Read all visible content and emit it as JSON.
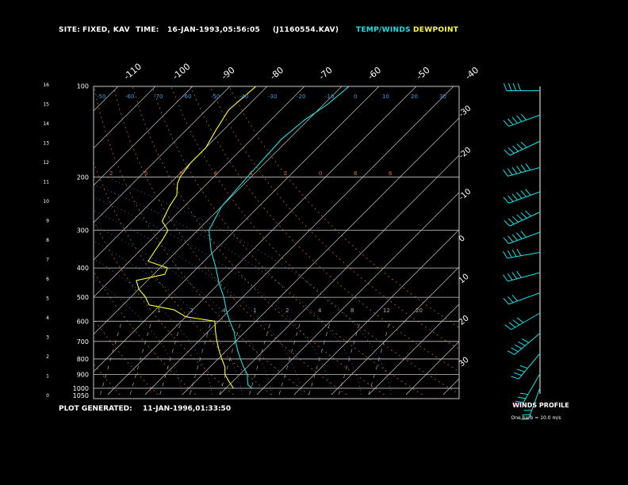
{
  "header": {
    "site_label": "SITE:",
    "site_value": "FIXED, KAV",
    "time_label": "TIME:",
    "time_value": "16-JAN-1993,05:56:05",
    "file_value": "(J1160554.KAV)",
    "legend_temp": "TEMP/WINDS",
    "legend_dew": "DEWPOINT"
  },
  "footer": {
    "generated_label": "PLOT GENERATED:",
    "generated_value": "11-JAN-1996,01:33:50"
  },
  "colors": {
    "temperature": "#19e0e6",
    "dewpoint": "#ffff33",
    "grid": "#c8c8c8",
    "isotherm": "#c8c8c8",
    "dry_adiabat": "#d2722e",
    "moist_adiabat": "#3f9be0",
    "mixing_ratio": "#aaaaaa",
    "wind": "#19e0e6"
  },
  "chart_data": {
    "type": "line",
    "y_scale": "log pressure",
    "pressure_ticks": [
      100,
      200,
      300,
      400,
      500,
      600,
      700,
      800,
      900,
      1000,
      1050
    ],
    "height_ticks_km": [
      0,
      1,
      2,
      3,
      4,
      5,
      6,
      7,
      8,
      9,
      10,
      11,
      12,
      13,
      14,
      15,
      16
    ],
    "top_temperature_ticks": [
      -110,
      -100,
      -90,
      -80,
      -70,
      -60,
      -50,
      -40
    ],
    "right_temperature_ticks": [
      -30,
      -20,
      -10,
      0,
      10,
      20,
      30
    ],
    "dry_adiabat_labels": [
      "2",
      "0",
      "8",
      "6",
      "4",
      "2",
      "0",
      "8",
      "6"
    ],
    "mixing_ratio_labels": [
      ".1",
      ".2",
      ".4",
      "1",
      "2",
      "4",
      "8",
      "12",
      "20"
    ],
    "moist_adiabat_labels": [
      "-50",
      "-60",
      "-70",
      "-60",
      "-50",
      "-40",
      "-30",
      "-20",
      "-10",
      "0",
      "10",
      "20",
      "30"
    ],
    "series": [
      {
        "name": "TEMP/WINDS",
        "points": [
          {
            "p": 1000,
            "t": -3
          },
          {
            "p": 975,
            "t": -5
          },
          {
            "p": 950,
            "t": -6
          },
          {
            "p": 900,
            "t": -8
          },
          {
            "p": 850,
            "t": -11
          },
          {
            "p": 800,
            "t": -14
          },
          {
            "p": 750,
            "t": -17
          },
          {
            "p": 700,
            "t": -20
          },
          {
            "p": 650,
            "t": -23
          },
          {
            "p": 600,
            "t": -27
          },
          {
            "p": 550,
            "t": -31
          },
          {
            "p": 500,
            "t": -35
          },
          {
            "p": 450,
            "t": -40
          },
          {
            "p": 400,
            "t": -45
          },
          {
            "p": 350,
            "t": -51
          },
          {
            "p": 300,
            "t": -57
          },
          {
            "p": 250,
            "t": -60
          },
          {
            "p": 200,
            "t": -61
          },
          {
            "p": 150,
            "t": -62
          },
          {
            "p": 130,
            "t": -61
          },
          {
            "p": 115,
            "t": -59
          },
          {
            "p": 100,
            "t": -58
          }
        ]
      },
      {
        "name": "DEWPOINT",
        "points": [
          {
            "p": 1000,
            "t": -8
          },
          {
            "p": 950,
            "t": -11
          },
          {
            "p": 900,
            "t": -14
          },
          {
            "p": 850,
            "t": -16
          },
          {
            "p": 800,
            "t": -19
          },
          {
            "p": 750,
            "t": -22
          },
          {
            "p": 700,
            "t": -25
          },
          {
            "p": 650,
            "t": -28
          },
          {
            "p": 600,
            "t": -31
          },
          {
            "p": 580,
            "t": -40
          },
          {
            "p": 550,
            "t": -45
          },
          {
            "p": 530,
            "t": -53
          },
          {
            "p": 500,
            "t": -56
          },
          {
            "p": 470,
            "t": -60
          },
          {
            "p": 440,
            "t": -63
          },
          {
            "p": 420,
            "t": -57
          },
          {
            "p": 400,
            "t": -58
          },
          {
            "p": 380,
            "t": -65
          },
          {
            "p": 350,
            "t": -66
          },
          {
            "p": 320,
            "t": -67
          },
          {
            "p": 300,
            "t": -68
          },
          {
            "p": 280,
            "t": -72
          },
          {
            "p": 250,
            "t": -74
          },
          {
            "p": 230,
            "t": -75
          },
          {
            "p": 210,
            "t": -78
          },
          {
            "p": 200,
            "t": -79
          },
          {
            "p": 180,
            "t": -80
          },
          {
            "p": 160,
            "t": -80
          },
          {
            "p": 140,
            "t": -82
          },
          {
            "p": 120,
            "t": -84
          },
          {
            "p": 100,
            "t": -83
          }
        ]
      }
    ]
  },
  "wind_profile": {
    "title": "WINDS PROFILE",
    "note": "One barb = 10.0 m/s",
    "barbs": [
      {
        "km": 15.0,
        "dir": 270,
        "speed_ms": 35
      },
      {
        "km": 13.8,
        "dir": 250,
        "speed_ms": 50
      },
      {
        "km": 12.5,
        "dir": 245,
        "speed_ms": 45
      },
      {
        "km": 11.2,
        "dir": 255,
        "speed_ms": 60
      },
      {
        "km": 10.0,
        "dir": 250,
        "speed_ms": 70
      },
      {
        "km": 9.0,
        "dir": 245,
        "speed_ms": 60
      },
      {
        "km": 8.0,
        "dir": 250,
        "speed_ms": 50
      },
      {
        "km": 7.0,
        "dir": 260,
        "speed_ms": 40
      },
      {
        "km": 6.0,
        "dir": 255,
        "speed_ms": 35
      },
      {
        "km": 5.0,
        "dir": 250,
        "speed_ms": 30
      },
      {
        "km": 4.0,
        "dir": 240,
        "speed_ms": 40
      },
      {
        "km": 3.0,
        "dir": 230,
        "speed_ms": 45
      },
      {
        "km": 2.0,
        "dir": 220,
        "speed_ms": 40
      },
      {
        "km": 1.0,
        "dir": 210,
        "speed_ms": 30
      },
      {
        "km": 0.3,
        "dir": 200,
        "speed_ms": 25
      }
    ]
  }
}
